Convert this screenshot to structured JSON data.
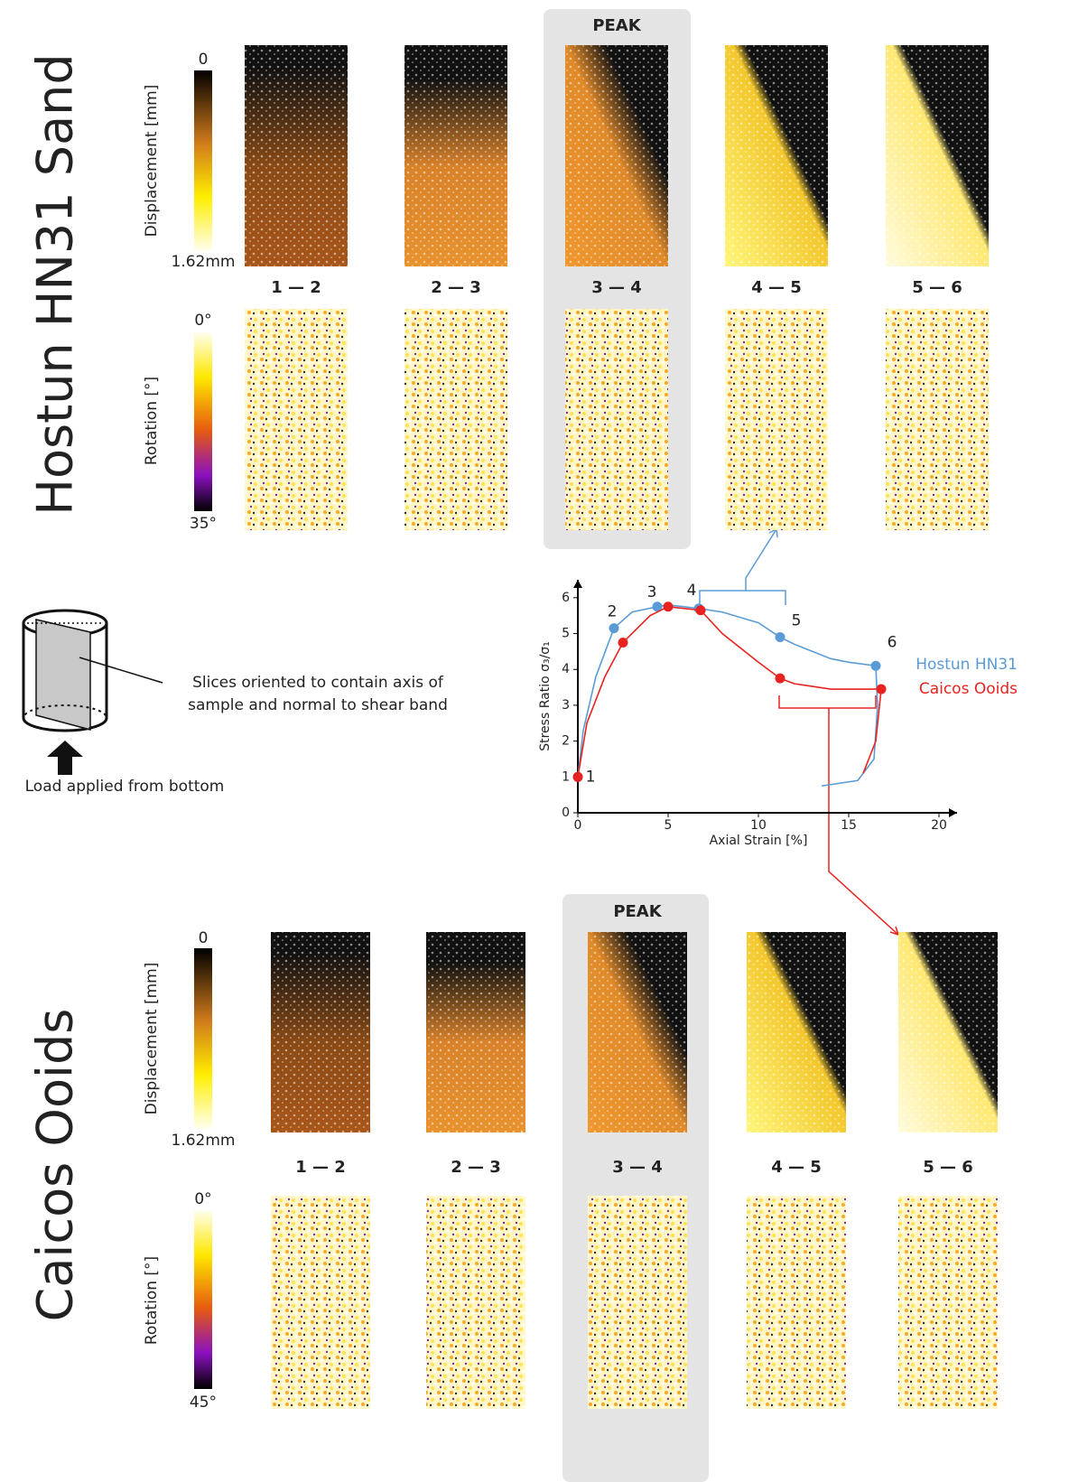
{
  "hostun": {
    "title": "Hostun HN31 Sand",
    "peak": "PEAK",
    "displacement_label": "Displacement [mm]",
    "displacement_min": "0",
    "displacement_max": "1.62mm",
    "rotation_label": "Rotation [°]",
    "rotation_min": "0°",
    "rotation_max": "35°",
    "increments": [
      "1 — 2",
      "2 — 3",
      "3 — 4",
      "4 — 5",
      "5 — 6"
    ]
  },
  "caicos": {
    "title": "Caicos Ooids",
    "peak": "PEAK",
    "displacement_label": "Displacement [mm]",
    "displacement_min": "0",
    "displacement_max": "1.62mm",
    "rotation_label": "Rotation [°]",
    "rotation_min": "0°",
    "rotation_max": "45°",
    "increments": [
      "1 — 2",
      "2 — 3",
      "3 — 4",
      "4 — 5",
      "5 — 6"
    ]
  },
  "schematic": {
    "slice_note": [
      "Slices oriented to contain axis of",
      "sample and normal to shear band"
    ],
    "load_note": "Load applied from bottom"
  },
  "chart_data": {
    "type": "line",
    "x_label": "Axial Strain [%]",
    "y_label": "Stress Ratio σ₃/σ₁",
    "xlim": [
      0,
      21
    ],
    "xticks": [
      0,
      5,
      10,
      15,
      20
    ],
    "ylim": [
      0,
      6.5
    ],
    "yticks": [
      0,
      1,
      2,
      3,
      4,
      5,
      6
    ],
    "legend": "right",
    "stage_labels": [
      "1",
      "2",
      "3",
      "4",
      "5",
      "6"
    ],
    "series": [
      {
        "name": "Hostun HN31",
        "color": "#5b9bd5",
        "x": [
          0,
          0.3,
          1,
          2,
          3,
          4.4,
          5,
          6.7,
          8,
          10,
          11.2,
          12,
          13,
          14,
          15,
          16.5,
          16.6,
          16.4,
          15.5,
          13.5
        ],
        "values": [
          1,
          2.3,
          3.8,
          5.15,
          5.6,
          5.75,
          5.8,
          5.7,
          5.6,
          5.3,
          4.9,
          4.7,
          4.5,
          4.3,
          4.2,
          4.1,
          3.0,
          1.5,
          0.9,
          0.75
        ],
        "markers": {
          "x": [
            0,
            2,
            4.4,
            6.7,
            11.2,
            16.5
          ],
          "y": [
            1,
            5.15,
            5.75,
            5.7,
            4.9,
            4.1
          ]
        }
      },
      {
        "name": "Caicos Ooids",
        "color": "#e8231f",
        "x": [
          0,
          0.5,
          1.5,
          2.5,
          4,
          5,
          6.8,
          8,
          10,
          11.2,
          12,
          14,
          16.8,
          16.5,
          15.8
        ],
        "values": [
          1,
          2.5,
          3.8,
          4.75,
          5.5,
          5.75,
          5.65,
          5.0,
          4.2,
          3.75,
          3.6,
          3.45,
          3.45,
          2.0,
          1.1
        ],
        "markers": {
          "x": [
            0,
            2.5,
            5,
            6.8,
            11.2,
            16.8
          ],
          "y": [
            1,
            4.75,
            5.75,
            5.65,
            3.75,
            3.45
          ]
        }
      }
    ]
  }
}
